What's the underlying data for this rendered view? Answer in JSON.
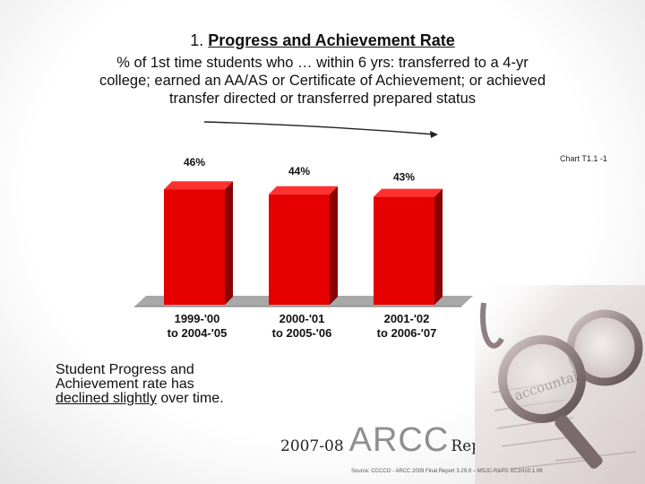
{
  "slide": {
    "title_number": "1.",
    "title_text": "Progress and Achievement Rate",
    "subtitle_lines": [
      "% of 1st time students who … within 6 yrs:  transferred to a 4-yr",
      "college; earned an AA/AS or Certificate of Achievement; or achieved",
      "transfer directed or transferred prepared status"
    ],
    "chart_id": "Chart T1.1 -1",
    "note_lines": [
      "Student  Progress and",
      "Achievement rate has"
    ],
    "note_underlined": "declined slightly",
    "note_tail": " over time.",
    "brand_year": "2007-08",
    "brand_name": "ARCC",
    "brand_report": "Report",
    "source": "Source: CCCCO - ARCC 2009 Final Report 3.29.9 – MSJC-R&PD XC1H10.1.09",
    "image_text": "accountability"
  },
  "chart_data": {
    "type": "bar",
    "categories": [
      [
        "1999-'00",
        "to 2004-'05"
      ],
      [
        "2000-'01",
        "to 2005-'06"
      ],
      [
        "2001-'02",
        "to 2006-'07"
      ]
    ],
    "values": [
      46,
      44,
      43
    ],
    "value_labels": [
      "46%",
      "44%",
      "43%"
    ],
    "colors": {
      "bar": "#e60000",
      "bar_side": "#8a0000",
      "bar_top": "#ff3030",
      "floor": "#a8a8a8"
    },
    "grid": false,
    "legend": "none",
    "trend_arrow": "declining"
  }
}
